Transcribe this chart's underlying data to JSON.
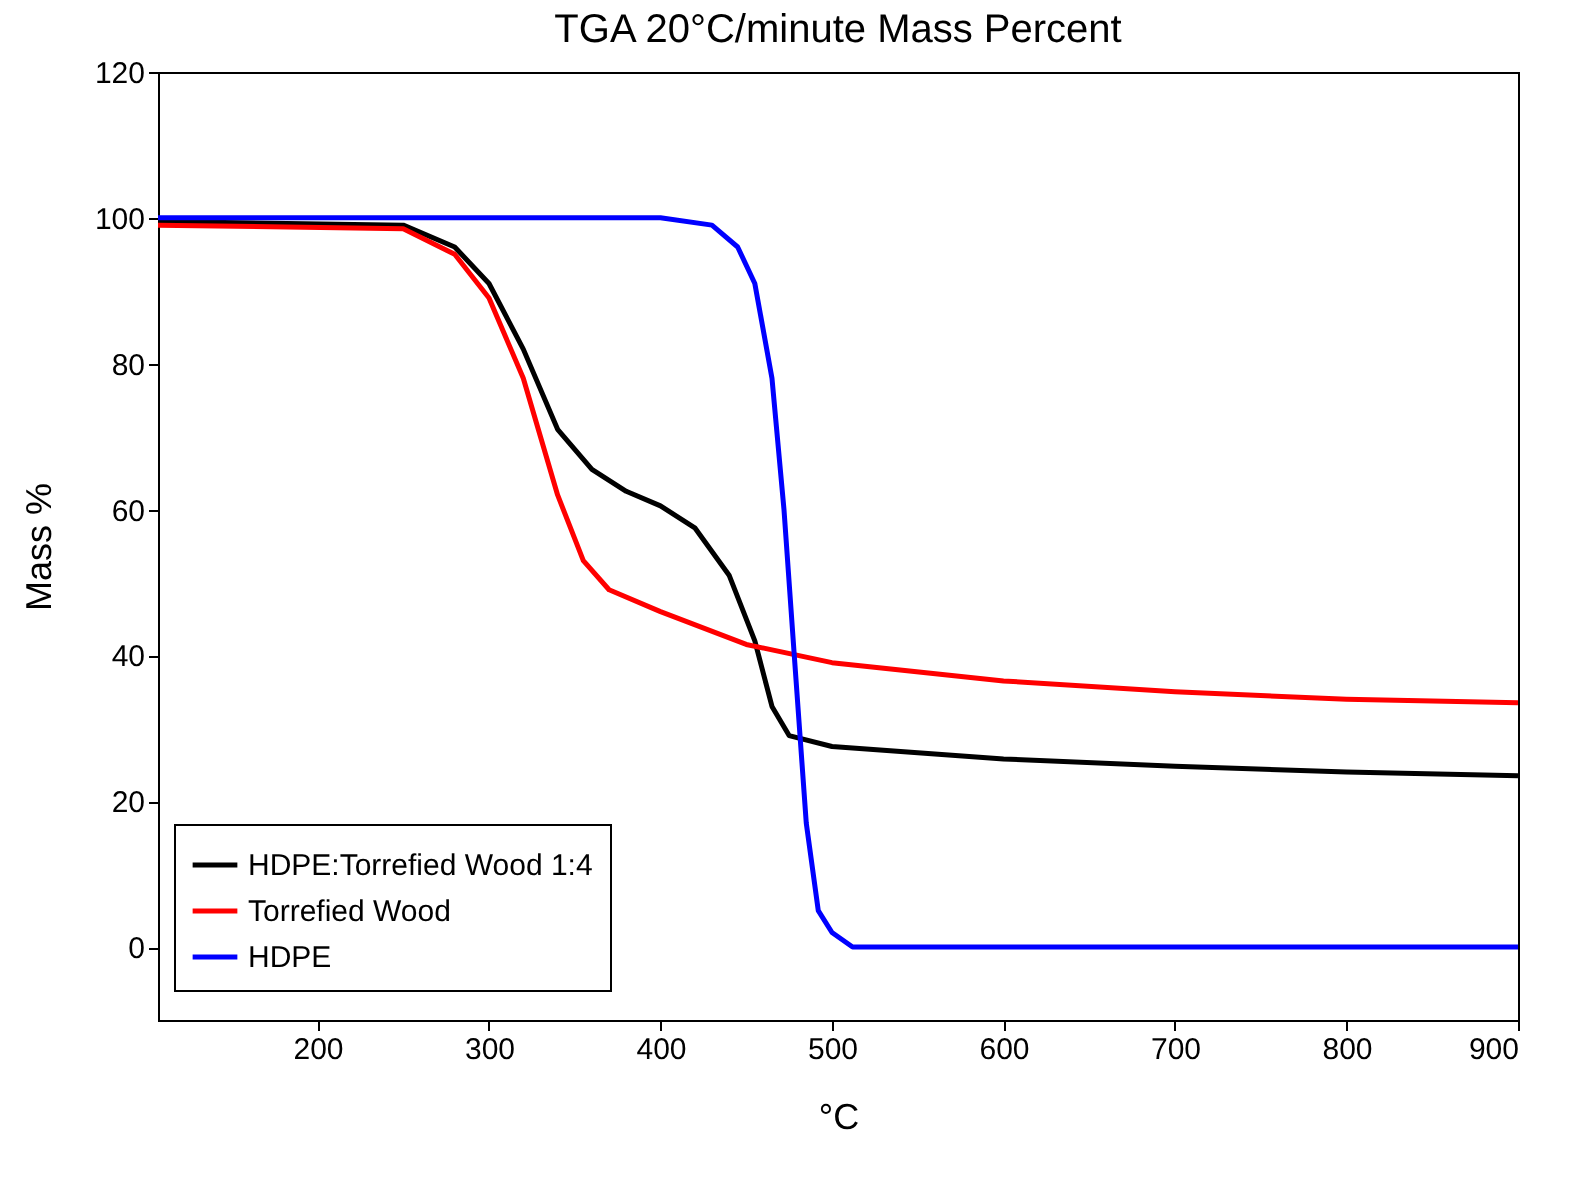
{
  "chart_data": {
    "type": "line",
    "title": "TGA 20°C/minute Mass Percent",
    "xlabel": "°C",
    "ylabel": "Mass %",
    "xlim": [
      107,
      900
    ],
    "ylim": [
      -10,
      120
    ],
    "xticks": [
      200,
      300,
      400,
      500,
      600,
      700,
      800,
      900
    ],
    "yticks": [
      0,
      20,
      40,
      60,
      80,
      100,
      120
    ],
    "grid": false,
    "legend": "bottom left",
    "marker": "none",
    "line_style": "solid",
    "series": [
      {
        "name": "HDPE:Torrefied Wood 1:4",
        "color": "#000000",
        "x": [
          107,
          250,
          280,
          300,
          320,
          340,
          360,
          380,
          400,
          420,
          440,
          455,
          465,
          475,
          500,
          600,
          700,
          800,
          900
        ],
        "values": [
          99.5,
          99,
          96,
          91,
          82,
          71,
          65.5,
          62.5,
          60.5,
          57.5,
          51,
          42,
          33,
          29,
          27.5,
          25.8,
          24.8,
          24,
          23.5
        ]
      },
      {
        "name": "Torrefied Wood",
        "color": "#ff0000",
        "x": [
          107,
          250,
          280,
          300,
          320,
          340,
          355,
          370,
          400,
          450,
          500,
          600,
          700,
          800,
          900
        ],
        "values": [
          99,
          98.5,
          95,
          89,
          78,
          62,
          53,
          49,
          46,
          41.5,
          39,
          36.5,
          35,
          34,
          33.5
        ]
      },
      {
        "name": "HDPE",
        "color": "#0000ff",
        "x": [
          107,
          400,
          430,
          445,
          455,
          465,
          472,
          478,
          485,
          492,
          500,
          512,
          900
        ],
        "values": [
          100,
          100,
          99,
          96,
          91,
          78,
          60,
          40,
          17,
          5,
          2,
          0,
          0
        ]
      }
    ]
  }
}
